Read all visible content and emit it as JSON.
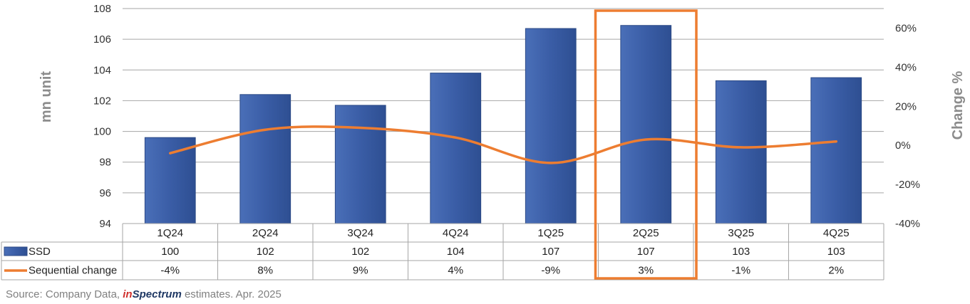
{
  "chart_data": {
    "type": "bar",
    "categories": [
      "1Q24",
      "2Q24",
      "3Q24",
      "4Q24",
      "1Q25",
      "2Q25",
      "3Q25",
      "4Q25"
    ],
    "series": [
      {
        "name": "SSD",
        "type": "bar",
        "axis": "left",
        "color": "#3a5da6",
        "values": [
          99.6,
          102.4,
          101.7,
          103.8,
          106.7,
          106.9,
          103.3,
          103.5
        ],
        "labels": [
          "100",
          "102",
          "102",
          "104",
          "107",
          "107",
          "103",
          "103"
        ]
      },
      {
        "name": "Sequential change",
        "type": "line",
        "axis": "right",
        "smooth": true,
        "color": "#ed7d31",
        "values": [
          -4,
          8,
          9,
          4,
          -9,
          3,
          -1,
          2
        ],
        "labels": [
          "-4%",
          "8%",
          "9%",
          "4%",
          "-9%",
          "3%",
          "-1%",
          "2%"
        ]
      }
    ],
    "ylabel": "mn unit",
    "y2label": "Change %",
    "ylim": [
      94,
      108
    ],
    "y_ticks": [
      "94",
      "96",
      "98",
      "100",
      "102",
      "104",
      "106",
      "108"
    ],
    "y2lim": [
      -40,
      70
    ],
    "y2_ticks": [
      "-40%",
      "-20%",
      "0%",
      "20%",
      "40%",
      "60%"
    ],
    "grid": true,
    "data_table": true,
    "highlight": {
      "category": "2Q25",
      "color": "#ed7d31"
    }
  },
  "source": {
    "prefix": "Source: Company Data, ",
    "brand_in": "in",
    "brand_rest": "Spectrum",
    "suffix": " estimates. Apr. 2025"
  }
}
